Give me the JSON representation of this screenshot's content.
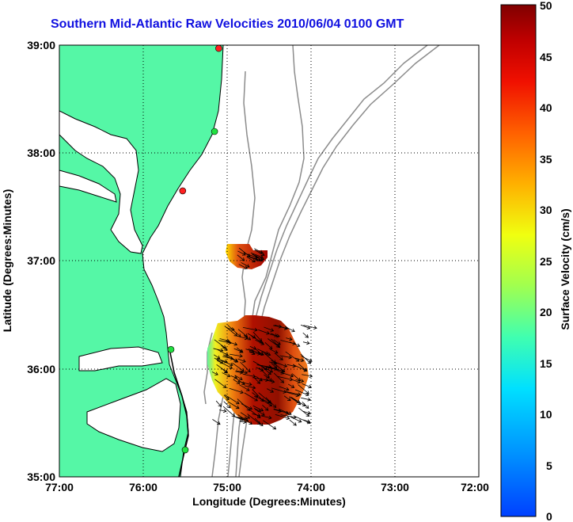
{
  "title": "Southern Mid-Atlantic Raw Velocities 2010/06/04 0100 GMT",
  "axes": {
    "xlabel": "Longitude (Degrees:Minutes)",
    "ylabel": "Latitude (Degrees:Minutes)",
    "x_ticks": [
      "77:00",
      "76:00",
      "75:00",
      "74:00",
      "73:00",
      "72:00"
    ],
    "y_ticks": [
      "39:00",
      "38:00",
      "37:00",
      "36:00",
      "35:00"
    ],
    "lon_range": [
      -77,
      -72
    ],
    "lat_range": [
      35,
      39
    ],
    "grid": "dotted"
  },
  "colorbar": {
    "label": "Surface Velocity (cm/s)",
    "ticks": [
      "50",
      "45",
      "40",
      "35",
      "30",
      "25",
      "20",
      "15",
      "10",
      "5",
      "0"
    ],
    "min": 0,
    "max": 50,
    "colormap": "jet"
  },
  "colors": {
    "land": "#55f7a6",
    "coastline": "#000000",
    "bathymetry": "#8c8c8c",
    "title": "#1010e0"
  },
  "stations": [
    {
      "lon": -75.1,
      "lat": 38.97,
      "status": "red"
    },
    {
      "lon": -75.15,
      "lat": 38.2,
      "status": "green"
    },
    {
      "lon": -75.53,
      "lat": 37.65,
      "status": "red"
    },
    {
      "lon": -75.67,
      "lat": 36.18,
      "status": "green"
    },
    {
      "lon": -75.5,
      "lat": 35.25,
      "status": "green"
    }
  ]
}
